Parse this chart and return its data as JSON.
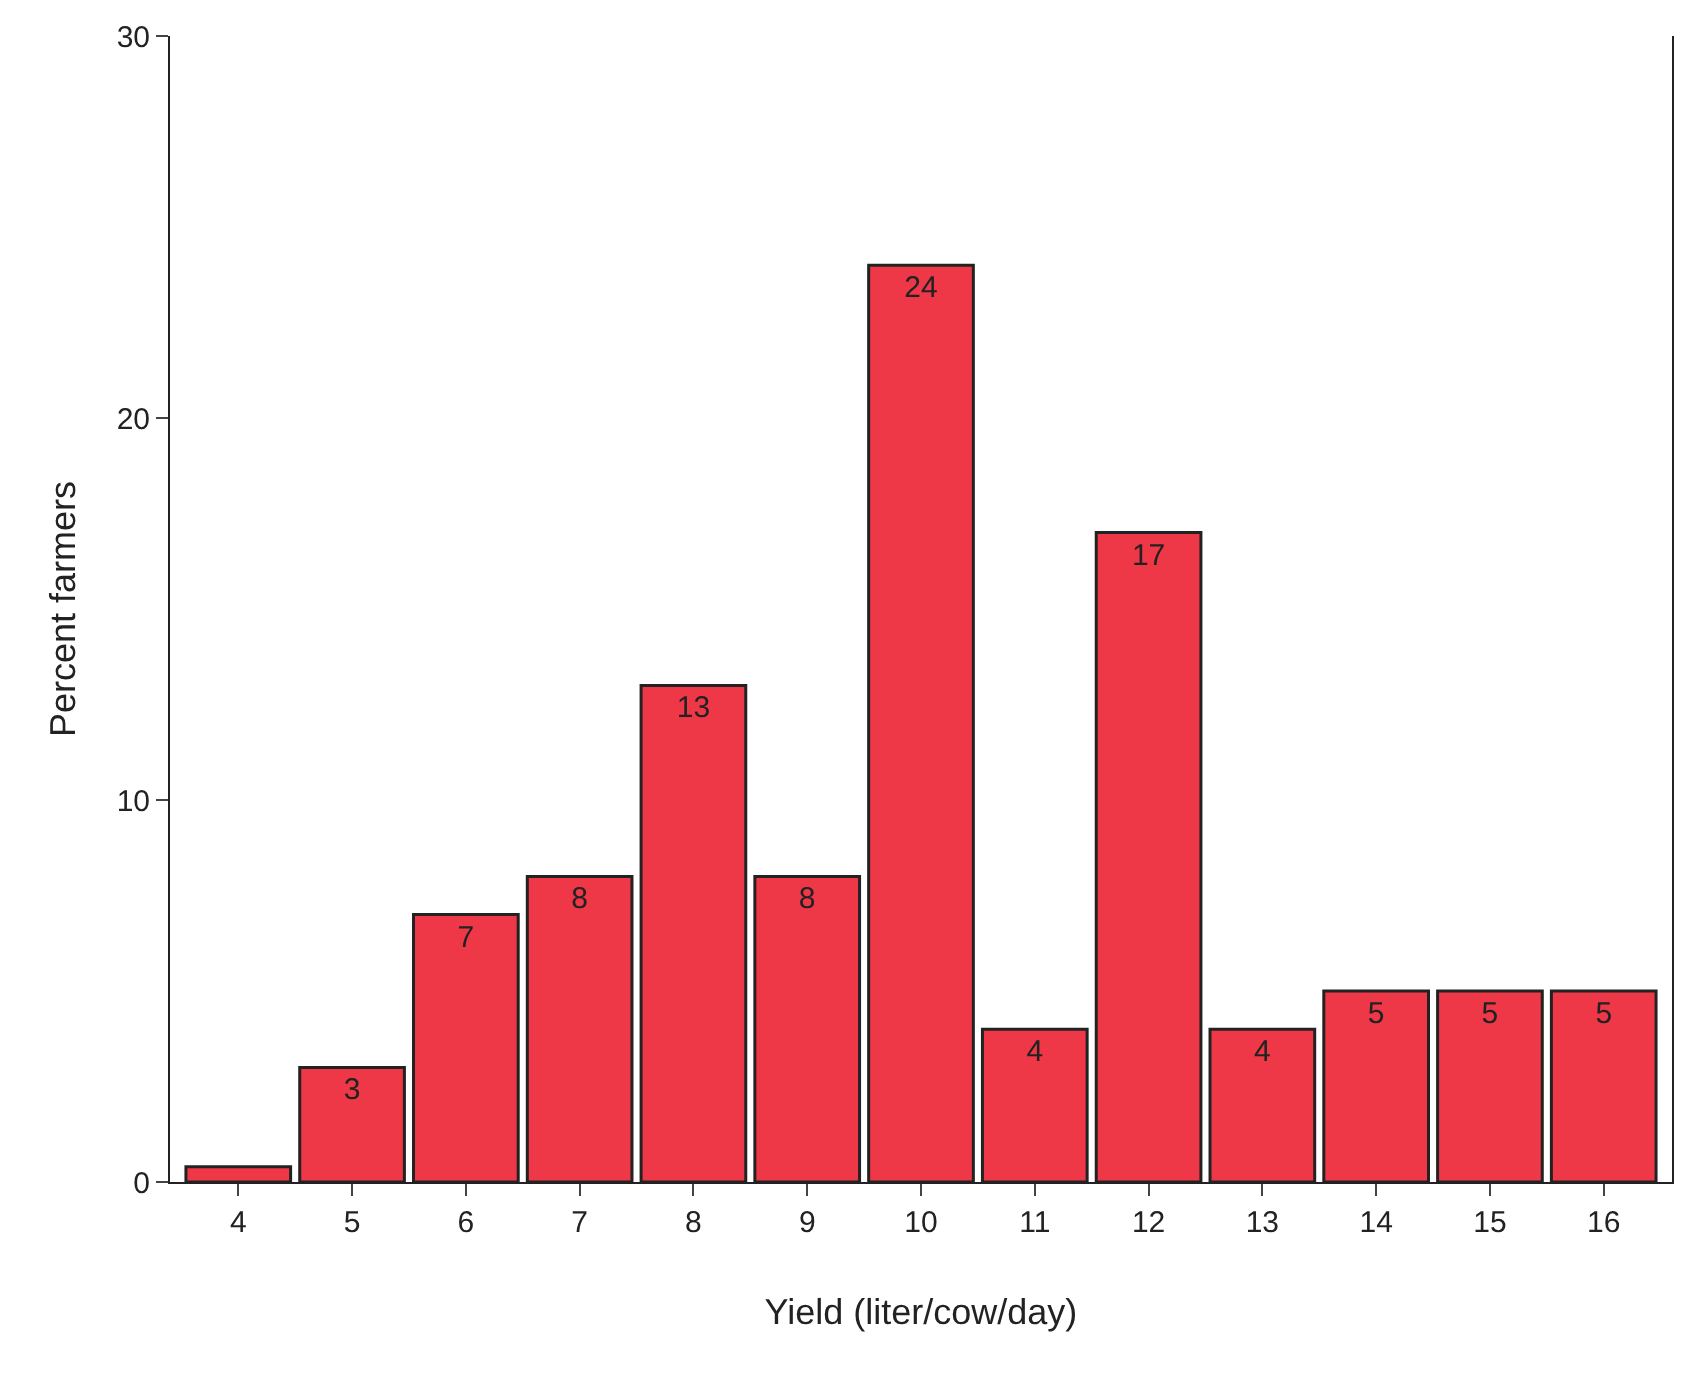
{
  "chart_data": {
    "type": "bar",
    "xlabel": "Yield (liter/cow/day)",
    "ylabel": "Percent farmers",
    "categories": [
      "4",
      "5",
      "6",
      "7",
      "8",
      "9",
      "10",
      "11",
      "12",
      "13",
      "14",
      "15",
      "16"
    ],
    "values": [
      0.4,
      3,
      7,
      8,
      13,
      8,
      24,
      4,
      17,
      4,
      5,
      5,
      5
    ],
    "value_labels": [
      null,
      "3",
      "7",
      "8",
      "13",
      "8",
      "24",
      "4",
      "17",
      "4",
      "5",
      "5",
      "5"
    ],
    "color": "#ee3848",
    "ylim": [
      0,
      30
    ],
    "yticks": [
      0,
      10,
      20,
      30
    ],
    "legend": false
  }
}
